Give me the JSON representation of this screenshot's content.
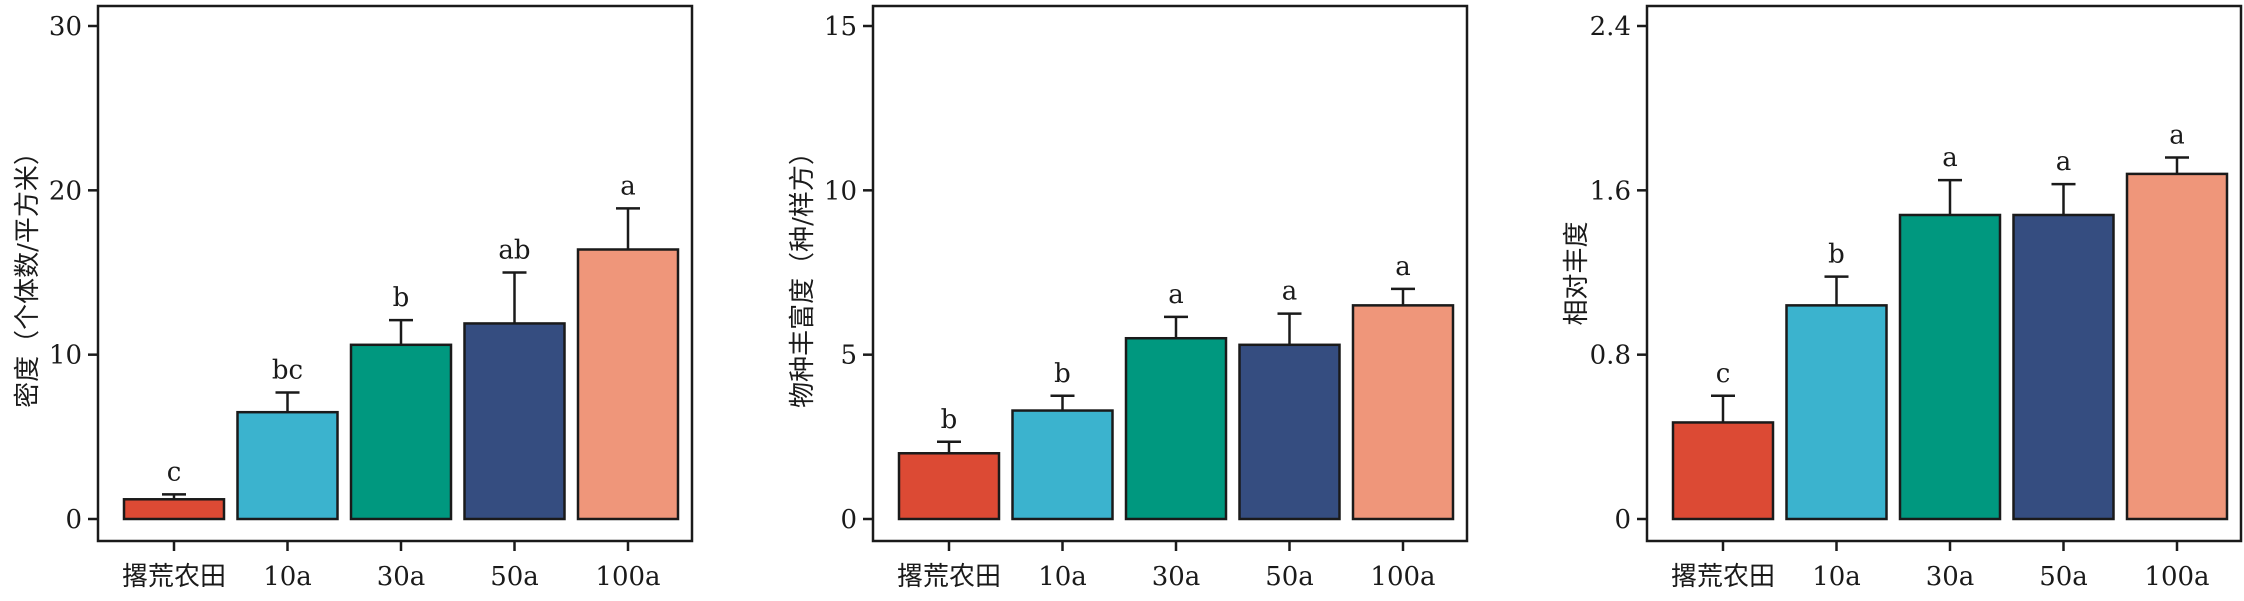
{
  "colors": {
    "abandoned": "#dc4a34",
    "y10": "#3bb3ce",
    "y30": "#00987f",
    "y50": "#354d80",
    "y100": "#ef967a",
    "axis": "#1a1a1a"
  },
  "chart_data": [
    {
      "type": "bar",
      "categories": [
        "撂荒农田",
        "10a",
        "30a",
        "50a",
        "100a"
      ],
      "values": [
        1.2,
        6.5,
        10.6,
        11.9,
        16.4
      ],
      "errors": [
        0.3,
        1.2,
        1.5,
        3.1,
        2.5
      ],
      "significance": [
        "c",
        "bc",
        "b",
        "ab",
        "a"
      ],
      "ylabel": "密度（个体数/平方米）",
      "ylim": [
        0,
        30
      ],
      "yticks": [
        0,
        10,
        20,
        30
      ],
      "ytick_labels": [
        "0",
        "10",
        "20",
        "30"
      ],
      "grid": false
    },
    {
      "type": "bar",
      "categories": [
        "撂荒农田",
        "10a",
        "30a",
        "50a",
        "100a"
      ],
      "values": [
        2.0,
        3.3,
        5.5,
        5.3,
        6.5
      ],
      "errors": [
        0.35,
        0.45,
        0.65,
        0.95,
        0.5
      ],
      "significance": [
        "b",
        "b",
        "a",
        "a",
        "a"
      ],
      "ylabel": "物种丰富度（种/样方）",
      "ylim": [
        0,
        15
      ],
      "yticks": [
        0,
        5,
        10,
        15
      ],
      "ytick_labels": [
        "0",
        "5",
        "10",
        "15"
      ],
      "grid": false
    },
    {
      "type": "bar",
      "categories": [
        "撂荒农田",
        "10a",
        "30a",
        "50a",
        "100a"
      ],
      "values": [
        0.47,
        1.04,
        1.48,
        1.48,
        1.68
      ],
      "errors": [
        0.13,
        0.14,
        0.17,
        0.15,
        0.08
      ],
      "significance": [
        "c",
        "b",
        "a",
        "a",
        "a"
      ],
      "ylabel": "相对丰度",
      "ylim": [
        0,
        2.4
      ],
      "yticks": [
        0,
        0.8,
        1.6,
        2.4
      ],
      "ytick_labels": [
        "0",
        "0.8",
        "1.6",
        "2.4"
      ],
      "grid": false
    }
  ]
}
